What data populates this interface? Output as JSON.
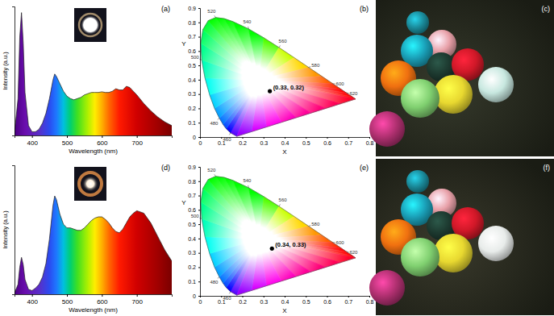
{
  "chart_data": [
    {
      "type": "area",
      "title": "(a)",
      "x_label": "Wavelength (nm)",
      "y_label": "Intensity (a.u.)",
      "xlim": [
        350,
        800
      ],
      "ylim": [
        0,
        1.05
      ],
      "xticks": [
        400,
        500,
        600,
        700
      ],
      "tick_labels": "x",
      "x": [
        350,
        360,
        365,
        370,
        375,
        380,
        390,
        400,
        410,
        420,
        430,
        440,
        450,
        460,
        465,
        470,
        480,
        490,
        500,
        510,
        520,
        530,
        540,
        550,
        560,
        570,
        580,
        590,
        600,
        610,
        620,
        630,
        640,
        650,
        660,
        670,
        680,
        690,
        700,
        720,
        740,
        760,
        780,
        800
      ],
      "values": [
        0.02,
        0.3,
        0.8,
        1.0,
        0.75,
        0.35,
        0.08,
        0.03,
        0.03,
        0.05,
        0.1,
        0.18,
        0.3,
        0.45,
        0.5,
        0.48,
        0.42,
        0.36,
        0.32,
        0.3,
        0.29,
        0.3,
        0.31,
        0.33,
        0.34,
        0.35,
        0.35,
        0.35,
        0.355,
        0.35,
        0.35,
        0.36,
        0.38,
        0.37,
        0.37,
        0.4,
        0.39,
        0.36,
        0.33,
        0.26,
        0.2,
        0.15,
        0.11,
        0.08
      ]
    },
    {
      "type": "scatter",
      "title": "(b)",
      "x_label": "X",
      "y_label": "Y",
      "xlim": [
        0,
        0.8
      ],
      "ylim": [
        0,
        0.9
      ],
      "xticks": [
        0,
        0.1,
        0.2,
        0.3,
        0.4,
        0.5,
        0.6,
        0.7,
        0.8
      ],
      "yticks": [
        0,
        0.1,
        0.2,
        0.3,
        0.4,
        0.5,
        0.6,
        0.7,
        0.8,
        0.9
      ],
      "x": [
        0.33
      ],
      "values": [
        0.32
      ],
      "value_labels": [
        "(0.33, 0.32)"
      ],
      "data_labels": true,
      "color": "#000000",
      "locus": {
        "x": [
          0.1741,
          0.144,
          0.1241,
          0.1096,
          0.0913,
          0.0687,
          0.0454,
          0.0235,
          0.0082,
          0.0039,
          0.0139,
          0.0389,
          0.0743,
          0.1142,
          0.1547,
          0.2296,
          0.3016,
          0.3731,
          0.4441,
          0.5125,
          0.5752,
          0.627,
          0.6658,
          0.6915,
          0.719,
          0.7347
        ],
        "y": [
          0.005,
          0.0297,
          0.0578,
          0.0868,
          0.1327,
          0.2007,
          0.295,
          0.4127,
          0.5384,
          0.6548,
          0.7502,
          0.812,
          0.8338,
          0.8262,
          0.8059,
          0.7543,
          0.6923,
          0.6245,
          0.5547,
          0.4866,
          0.4242,
          0.3725,
          0.334,
          0.3083,
          0.2809,
          0.2653
        ]
      },
      "locus_labels": [
        null,
        460,
        null,
        null,
        480,
        null,
        null,
        null,
        500,
        null,
        null,
        null,
        520,
        null,
        null,
        540,
        null,
        560,
        null,
        580,
        null,
        600,
        null,
        620,
        null,
        null
      ]
    },
    {
      "type": "area",
      "title": "(d)",
      "x_label": "Wavelength (nm)",
      "y_label": "Intensity (a.u.)",
      "xlim": [
        350,
        800
      ],
      "ylim": [
        0,
        1.05
      ],
      "xticks": [
        400,
        500,
        600,
        700
      ],
      "tick_labels": "x",
      "x": [
        350,
        360,
        365,
        370,
        375,
        380,
        390,
        400,
        410,
        420,
        430,
        440,
        450,
        460,
        465,
        470,
        480,
        490,
        500,
        510,
        520,
        530,
        540,
        550,
        560,
        570,
        580,
        590,
        600,
        610,
        620,
        630,
        640,
        650,
        660,
        670,
        680,
        690,
        700,
        720,
        740,
        760,
        780,
        800
      ],
      "values": [
        0.01,
        0.08,
        0.22,
        0.3,
        0.24,
        0.12,
        0.04,
        0.03,
        0.05,
        0.08,
        0.14,
        0.25,
        0.45,
        0.72,
        0.8,
        0.77,
        0.65,
        0.57,
        0.54,
        0.54,
        0.53,
        0.52,
        0.52,
        0.54,
        0.57,
        0.6,
        0.62,
        0.63,
        0.63,
        0.61,
        0.58,
        0.54,
        0.51,
        0.5,
        0.53,
        0.58,
        0.63,
        0.66,
        0.68,
        0.66,
        0.58,
        0.47,
        0.36,
        0.27
      ]
    },
    {
      "type": "scatter",
      "title": "(e)",
      "x_label": "X",
      "y_label": "Y",
      "xlim": [
        0,
        0.8
      ],
      "ylim": [
        0,
        0.9
      ],
      "xticks": [
        0,
        0.1,
        0.2,
        0.3,
        0.4,
        0.5,
        0.6,
        0.7,
        0.8
      ],
      "yticks": [
        0,
        0.1,
        0.2,
        0.3,
        0.4,
        0.5,
        0.6,
        0.7,
        0.8,
        0.9
      ],
      "x": [
        0.34
      ],
      "values": [
        0.33
      ],
      "value_labels": [
        "(0.34, 0.33)"
      ],
      "data_labels": true,
      "color": "#000000",
      "locus": {
        "x": [
          0.1741,
          0.144,
          0.1241,
          0.1096,
          0.0913,
          0.0687,
          0.0454,
          0.0235,
          0.0082,
          0.0039,
          0.0139,
          0.0389,
          0.0743,
          0.1142,
          0.1547,
          0.2296,
          0.3016,
          0.3731,
          0.4441,
          0.5125,
          0.5752,
          0.627,
          0.6658,
          0.6915,
          0.719,
          0.7347
        ],
        "y": [
          0.005,
          0.0297,
          0.0578,
          0.0868,
          0.1327,
          0.2007,
          0.295,
          0.4127,
          0.5384,
          0.6548,
          0.7502,
          0.812,
          0.8338,
          0.8262,
          0.8059,
          0.7543,
          0.6923,
          0.6245,
          0.5547,
          0.4866,
          0.4242,
          0.3725,
          0.334,
          0.3083,
          0.2809,
          0.2653
        ]
      },
      "locus_labels": [
        null,
        460,
        null,
        null,
        480,
        null,
        null,
        null,
        500,
        null,
        null,
        null,
        520,
        null,
        null,
        540,
        null,
        560,
        null,
        580,
        null,
        600,
        null,
        620,
        null,
        null
      ]
    }
  ],
  "photos": [
    {
      "label": "(c)"
    },
    {
      "label": "(f)"
    }
  ]
}
